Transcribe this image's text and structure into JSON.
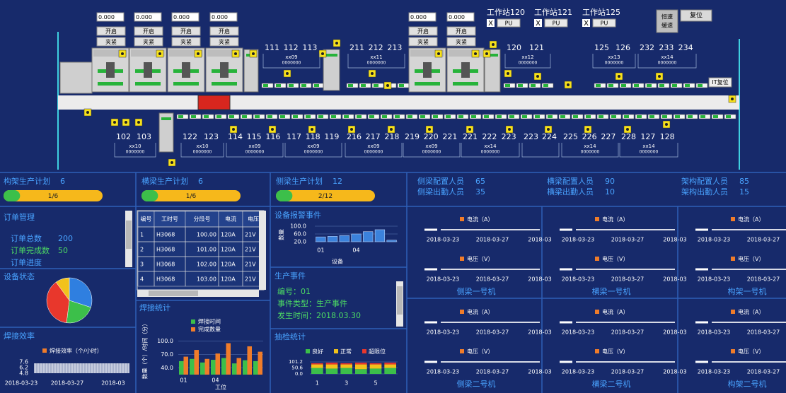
{
  "top": {
    "inputs": [
      "0.000",
      "0.000",
      "0.000",
      "0.000",
      "0.000",
      "0.000"
    ],
    "open": "开启",
    "clamp": "夹紧",
    "stations": [
      {
        "name": "工作站120",
        "check": "X",
        "button": "PU"
      },
      {
        "name": "工作站121",
        "check": "X",
        "button": "PU"
      },
      {
        "name": "工作站125",
        "check": "X",
        "button": "PU"
      }
    ],
    "mode": [
      "恒速",
      "缓速"
    ],
    "reset": "复位",
    "it_reset": "IT复位",
    "upper_groups": [
      {
        "numbers": [
          "111",
          "112",
          "113"
        ],
        "code": "xx09",
        "count": "0000000"
      },
      {
        "numbers": [
          "211",
          "212",
          "213"
        ],
        "code": "xx11",
        "count": "0000000"
      },
      {
        "numbers": [
          "120",
          "121"
        ],
        "code": "xx12",
        "count": "0000000"
      },
      {
        "numbers": [
          "125",
          "126"
        ],
        "code": "xx13",
        "count": "0000000"
      },
      {
        "numbers": [
          "232",
          "233",
          "234"
        ],
        "code": "xx14",
        "count": "0000000"
      }
    ],
    "lower_groups": [
      {
        "numbers": [
          "102",
          "103"
        ],
        "code": "xx10",
        "count": "0000000"
      },
      {
        "numbers": [
          "122",
          "123"
        ],
        "code": "xx10",
        "count": "0000000"
      },
      {
        "numbers": [
          "114",
          "115",
          "116"
        ],
        "code": "xx09",
        "count": "0000000"
      },
      {
        "numbers": [
          "117",
          "118",
          "119"
        ],
        "code": "xx09",
        "count": "0000000"
      },
      {
        "numbers": [
          "216",
          "217",
          "218"
        ],
        "code": "xx09",
        "count": "0000000"
      },
      {
        "numbers": [
          "219",
          "220",
          "221"
        ],
        "code": "xx09",
        "count": "0000000"
      },
      {
        "numbers": [
          "221",
          "222",
          "223"
        ],
        "code": "xx14",
        "count": "0000000"
      },
      {
        "numbers": [
          "223",
          "224"
        ]
      },
      {
        "numbers": [
          "225",
          "226",
          "227"
        ],
        "code": "xx14",
        "count": "0000000"
      },
      {
        "numbers": [
          "228",
          "127",
          "128"
        ],
        "code": "xx14",
        "count": "0000000"
      }
    ]
  },
  "plans": [
    {
      "label": "构架生产计划",
      "value": 6,
      "progress": {
        "value": 1,
        "label": "1/6"
      }
    },
    {
      "label": "横梁生产计划",
      "value": 6,
      "progress": {
        "value": 1,
        "label": "1/6"
      }
    },
    {
      "label": "侧梁生产计划",
      "value": 12,
      "progress": {
        "value": 2,
        "label": "2/12"
      }
    }
  ],
  "staffing": [
    {
      "label": "侧梁配置人员",
      "value": 65
    },
    {
      "label": "侧梁出勤人员",
      "value": 35
    },
    {
      "label": "横梁配置人员",
      "value": 90
    },
    {
      "label": "横梁出勤人员",
      "value": 10
    },
    {
      "label": "架构配置人员",
      "value": 85
    },
    {
      "label": "架构出勤人员",
      "value": 15
    }
  ],
  "orders": {
    "title": "订单管理",
    "total_label": "订单总数",
    "total": 200,
    "done_label": "订单完成数",
    "done": 50,
    "progress_label": "订单进度"
  },
  "table": {
    "headers": [
      "编号",
      "工时号",
      "分段号",
      "电流",
      "电压"
    ],
    "rows": [
      [
        "1",
        "H3068",
        "100.00",
        "120A",
        "21V"
      ],
      [
        "2",
        "H3068",
        "101.00",
        "120A",
        "21V"
      ],
      [
        "3",
        "H3068",
        "102.00",
        "120A",
        "21V"
      ],
      [
        "4",
        "H3068",
        "103.00",
        "120A",
        "21V"
      ]
    ]
  },
  "device_status": {
    "title": "设备状态",
    "slices": [
      {
        "color": "#2f7fe0",
        "value": 30
      },
      {
        "color": "#3cbf4a",
        "value": 22
      },
      {
        "color": "#e8372c",
        "value": 38
      },
      {
        "color": "#f2c21b",
        "value": 10
      }
    ]
  },
  "efficiency": {
    "title": "焊接效率",
    "legend": "焊接效率（个/小时）",
    "yticks": [
      7.6,
      6.2,
      4.8
    ],
    "dates": [
      "2018-03-23",
      "2018-03-27",
      "2018-03"
    ]
  },
  "alarms": {
    "title": "设备报警事件",
    "ylabel": "数量",
    "xlabel": "设备",
    "ylim": [
      20,
      100
    ],
    "yticks": [
      {
        "value": 100,
        "label": "100.0"
      },
      {
        "value": 60,
        "label": "60.0"
      },
      {
        "value": 20,
        "label": "20.0"
      }
    ],
    "categories": [
      "01",
      null,
      null,
      "04",
      null,
      null,
      null
    ],
    "values": [
      45,
      48,
      52,
      60,
      72,
      82,
      28
    ],
    "color": "#3b82dc"
  },
  "welding": {
    "title": "焊接统计",
    "ylabel": "数量（个）/时间（分）",
    "xlabel": "工位",
    "ylim": [
      25,
      110
    ],
    "yticks": [
      {
        "value": 100,
        "label": "100.0"
      },
      {
        "value": 70,
        "label": "70.0"
      },
      {
        "value": 40,
        "label": "40.0"
      }
    ],
    "categories": [
      "01",
      null,
      null,
      "04",
      null,
      null,
      null,
      null
    ],
    "series": [
      {
        "name": "焊接时间",
        "color": "#3cbf4a",
        "values": [
          55,
          60,
          52,
          58,
          62,
          50,
          57,
          55
        ]
      },
      {
        "name": "完成数量",
        "color": "#f07c2a",
        "values": [
          65,
          80,
          60,
          72,
          95,
          62,
          88,
          76
        ]
      }
    ]
  },
  "events": {
    "title": "生产事件",
    "lines": [
      "编号：01",
      "事件类型：生产事件",
      "发生时间：2018.03.30"
    ]
  },
  "sampling": {
    "title": "抽检统计",
    "ylim": [
      0,
      101.2
    ],
    "yticks": [
      101.2,
      50.6,
      {
        "value": 0,
        "label": "0.0"
      }
    ],
    "categories": [
      "1",
      null,
      "3",
      null,
      "5",
      null
    ],
    "series": [
      {
        "name": "良好",
        "color": "#3cbf4a",
        "values": [
          50,
          45,
          50,
          40,
          45,
          50
        ]
      },
      {
        "name": "正常",
        "color": "#f2c21b",
        "values": [
          30,
          35,
          30,
          40,
          35,
          30
        ]
      },
      {
        "name": "超限位",
        "color": "#e8372c",
        "values": [
          10,
          15,
          10,
          15,
          10,
          15
        ]
      }
    ]
  },
  "machines": {
    "current": "电流（A）",
    "voltage": "电压（V）",
    "dates": [
      "2018-03-23",
      "2018-03-27",
      "2018-03"
    ],
    "titles": [
      "侧梁一号机",
      "横梁一号机",
      "构架一号机",
      "侧梁二号机",
      "横梁二号机",
      "构架二号机"
    ]
  }
}
